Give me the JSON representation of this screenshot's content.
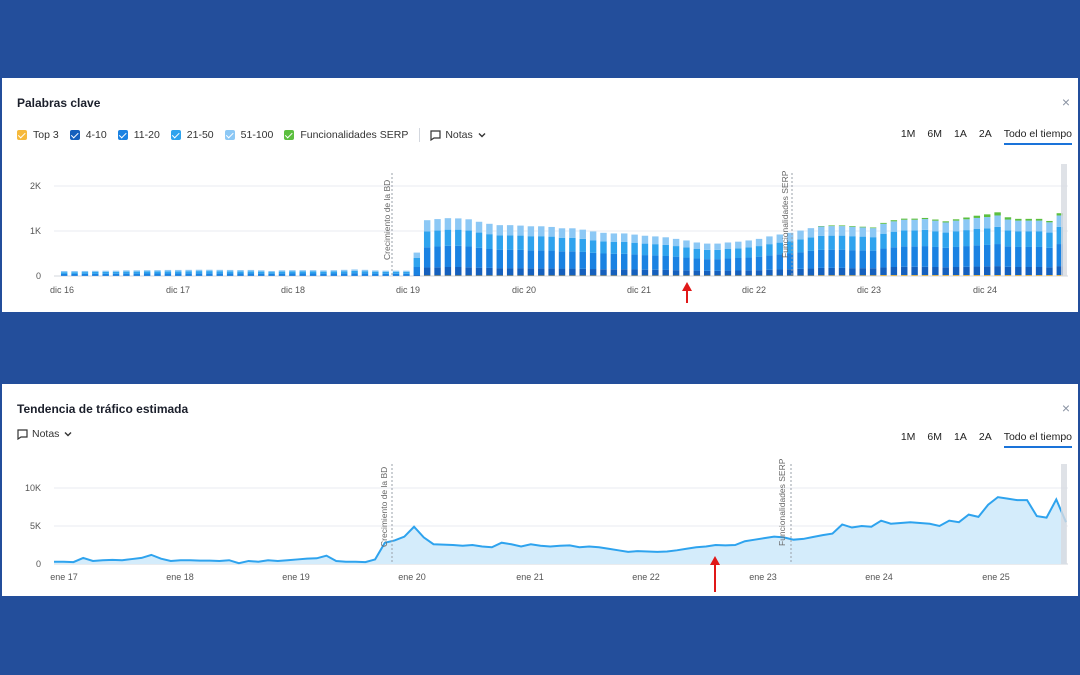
{
  "keywords_panel": {
    "title": "Palabras clave",
    "legend": [
      {
        "label": "Top 3",
        "color": "#f6b93b"
      },
      {
        "label": "4-10",
        "color": "#1560bd"
      },
      {
        "label": "11-20",
        "color": "#1a82e2"
      },
      {
        "label": "21-50",
        "color": "#2ea3ee"
      },
      {
        "label": "51-100",
        "color": "#8cc8f5"
      },
      {
        "label": "Funcionalidades SERP",
        "color": "#5cbf3f"
      }
    ],
    "notes_label": "Notas",
    "ranges": [
      "1M",
      "6M",
      "1A",
      "2A",
      "Todo el tiempo"
    ],
    "active_range": "Todo el tiempo",
    "close_icon": "×"
  },
  "traffic_panel": {
    "title": "Tendencia de tráfico estimada",
    "notes_label": "Notas",
    "ranges": [
      "1M",
      "6M",
      "1A",
      "2A",
      "Todo el tiempo"
    ],
    "active_range": "Todo el tiempo",
    "close_icon": "×"
  },
  "chart_data": [
    {
      "type": "bar",
      "stacked": true,
      "y_ticks": [
        "2K",
        "1K",
        "0"
      ],
      "ylim": [
        0,
        2400
      ],
      "x_ticks": [
        "dic 16",
        "dic 17",
        "dic 18",
        "dic 19",
        "dic 20",
        "dic 21",
        "dic 22",
        "dic 23",
        "dic 24"
      ],
      "annotations": [
        "Crecimiento de la BD",
        "Funcionalidades SERP"
      ],
      "series": [
        "Top 3",
        "4-10",
        "11-20",
        "21-50",
        "51-100",
        "Funcionalidades SERP"
      ],
      "values": [
        [
          0,
          5,
          40,
          40,
          25,
          0
        ],
        [
          0,
          5,
          40,
          40,
          25,
          0
        ],
        [
          0,
          5,
          42,
          40,
          25,
          0
        ],
        [
          0,
          5,
          42,
          42,
          26,
          0
        ],
        [
          0,
          5,
          44,
          42,
          26,
          0
        ],
        [
          0,
          5,
          45,
          42,
          26,
          0
        ],
        [
          0,
          5,
          48,
          45,
          28,
          0
        ],
        [
          0,
          5,
          48,
          45,
          28,
          0
        ],
        [
          0,
          5,
          50,
          46,
          28,
          0
        ],
        [
          0,
          5,
          50,
          46,
          29,
          0
        ],
        [
          0,
          5,
          52,
          48,
          30,
          0
        ],
        [
          0,
          5,
          52,
          48,
          30,
          0
        ],
        [
          0,
          5,
          54,
          48,
          30,
          0
        ],
        [
          0,
          5,
          54,
          50,
          30,
          0
        ],
        [
          0,
          5,
          54,
          50,
          30,
          0
        ],
        [
          0,
          5,
          54,
          48,
          30,
          0
        ],
        [
          0,
          5,
          52,
          48,
          30,
          0
        ],
        [
          0,
          5,
          50,
          48,
          29,
          0
        ],
        [
          0,
          5,
          52,
          48,
          30,
          0
        ],
        [
          0,
          5,
          48,
          45,
          28,
          0
        ],
        [
          0,
          5,
          42,
          40,
          25,
          0
        ],
        [
          0,
          5,
          48,
          45,
          28,
          0
        ],
        [
          0,
          5,
          50,
          46,
          28,
          0
        ],
        [
          0,
          5,
          50,
          46,
          28,
          0
        ],
        [
          0,
          5,
          50,
          46,
          28,
          0
        ],
        [
          0,
          5,
          48,
          44,
          27,
          0
        ],
        [
          0,
          5,
          50,
          46,
          28,
          0
        ],
        [
          0,
          5,
          54,
          48,
          30,
          0
        ],
        [
          0,
          5,
          58,
          50,
          32,
          0
        ],
        [
          0,
          5,
          54,
          48,
          30,
          0
        ],
        [
          0,
          5,
          48,
          44,
          27,
          0
        ],
        [
          0,
          5,
          45,
          42,
          26,
          0
        ],
        [
          0,
          5,
          45,
          42,
          26,
          0
        ],
        [
          0,
          5,
          45,
          42,
          26,
          0
        ],
        [
          0,
          20,
          180,
          200,
          120,
          0
        ],
        [
          10,
          180,
          450,
          350,
          250,
          0
        ],
        [
          10,
          185,
          460,
          355,
          255,
          0
        ],
        [
          10,
          190,
          470,
          360,
          255,
          0
        ],
        [
          10,
          190,
          470,
          360,
          250,
          0
        ],
        [
          10,
          185,
          460,
          355,
          250,
          0
        ],
        [
          10,
          175,
          440,
          340,
          240,
          0
        ],
        [
          10,
          170,
          420,
          330,
          230,
          0
        ],
        [
          10,
          165,
          410,
          320,
          225,
          0
        ],
        [
          10,
          165,
          410,
          320,
          225,
          0
        ],
        [
          10,
          165,
          405,
          318,
          222,
          0
        ],
        [
          10,
          160,
          400,
          315,
          220,
          0
        ],
        [
          10,
          160,
          400,
          315,
          220,
          0
        ],
        [
          10,
          160,
          395,
          310,
          215,
          0
        ],
        [
          10,
          155,
          385,
          300,
          210,
          0
        ],
        [
          10,
          155,
          385,
          300,
          210,
          0
        ],
        [
          10,
          150,
          375,
          290,
          205,
          0
        ],
        [
          10,
          145,
          360,
          280,
          195,
          0
        ],
        [
          10,
          140,
          350,
          270,
          190,
          0
        ],
        [
          10,
          138,
          345,
          268,
          185,
          0
        ],
        [
          10,
          138,
          345,
          268,
          185,
          0
        ],
        [
          10,
          135,
          335,
          260,
          180,
          0
        ],
        [
          10,
          130,
          325,
          255,
          175,
          0
        ],
        [
          10,
          128,
          320,
          250,
          172,
          0
        ],
        [
          10,
          125,
          310,
          245,
          170,
          0
        ],
        [
          10,
          120,
          300,
          235,
          160,
          0
        ],
        [
          10,
          115,
          285,
          225,
          155,
          0
        ],
        [
          10,
          110,
          270,
          210,
          145,
          0
        ],
        [
          10,
          105,
          260,
          205,
          140,
          0
        ],
        [
          10,
          105,
          260,
          205,
          140,
          0
        ],
        [
          10,
          110,
          270,
          210,
          145,
          0
        ],
        [
          10,
          112,
          278,
          215,
          148,
          0
        ],
        [
          10,
          115,
          285,
          225,
          155,
          0
        ],
        [
          10,
          120,
          300,
          235,
          160,
          0
        ],
        [
          10,
          128,
          320,
          250,
          172,
          0
        ],
        [
          10,
          135,
          335,
          262,
          180,
          0
        ],
        [
          10,
          140,
          350,
          270,
          190,
          0
        ],
        [
          10,
          150,
          370,
          285,
          195,
          0
        ],
        [
          10,
          158,
          390,
          300,
          205,
          0
        ],
        [
          15,
          165,
          400,
          310,
          210,
          10
        ],
        [
          15,
          165,
          405,
          312,
          212,
          15
        ],
        [
          15,
          165,
          405,
          312,
          212,
          15
        ],
        [
          15,
          160,
          400,
          310,
          210,
          15
        ],
        [
          15,
          160,
          395,
          305,
          205,
          15
        ],
        [
          15,
          158,
          390,
          300,
          200,
          15
        ],
        [
          20,
          170,
          420,
          330,
          220,
          20
        ],
        [
          20,
          180,
          440,
          345,
          230,
          25
        ],
        [
          20,
          185,
          455,
          355,
          235,
          25
        ],
        [
          20,
          185,
          455,
          355,
          235,
          25
        ],
        [
          20,
          185,
          460,
          360,
          240,
          25
        ],
        [
          20,
          180,
          445,
          350,
          235,
          25
        ],
        [
          20,
          175,
          430,
          340,
          225,
          25
        ],
        [
          20,
          180,
          445,
          350,
          235,
          30
        ],
        [
          20,
          185,
          460,
          355,
          240,
          40
        ],
        [
          20,
          190,
          470,
          365,
          245,
          50
        ],
        [
          20,
          195,
          475,
          370,
          250,
          60
        ],
        [
          20,
          200,
          490,
          380,
          255,
          70
        ],
        [
          20,
          185,
          455,
          355,
          240,
          50
        ],
        [
          20,
          180,
          445,
          350,
          235,
          40
        ],
        [
          20,
          180,
          445,
          350,
          235,
          40
        ],
        [
          20,
          180,
          445,
          350,
          235,
          40
        ],
        [
          20,
          175,
          430,
          340,
          228,
          30
        ],
        [
          20,
          200,
          490,
          380,
          255,
          50
        ]
      ]
    },
    {
      "type": "area",
      "y_ticks": [
        "10K",
        "5K",
        "0"
      ],
      "ylim": [
        0,
        11000
      ],
      "x_ticks": [
        "ene 17",
        "ene 18",
        "ene 19",
        "ene 20",
        "ene 21",
        "ene 22",
        "ene 23",
        "ene 24",
        "ene 25"
      ],
      "annotations": [
        "Crecimiento de la BD",
        "Funcionalidades SERP"
      ],
      "values": [
        300,
        300,
        250,
        800,
        400,
        500,
        550,
        500,
        650,
        800,
        1200,
        700,
        400,
        500,
        500,
        450,
        450,
        400,
        500,
        100,
        400,
        300,
        500,
        400,
        500,
        600,
        700,
        750,
        1100,
        400,
        300,
        300,
        250,
        600,
        2800,
        3100,
        3600,
        4900,
        3500,
        2600,
        2550,
        2500,
        2400,
        2500,
        2300,
        2200,
        2800,
        2600,
        2300,
        2600,
        2400,
        2300,
        2400,
        2450,
        2200,
        2300,
        2200,
        2000,
        1800,
        1600,
        1700,
        1650,
        1600,
        1650,
        1800,
        2000,
        2200,
        2300,
        2500,
        2450,
        2500,
        3000,
        3200,
        3400,
        3600,
        3500,
        3200,
        3300,
        3550,
        3800,
        4000,
        5200,
        4800,
        5000,
        4900,
        5700,
        5300,
        5400,
        5500,
        5400,
        5300,
        5000,
        5700,
        5500,
        6500,
        6200,
        7800,
        8800,
        8600,
        8400,
        8400,
        6300,
        6100,
        8500,
        5500
      ]
    }
  ]
}
